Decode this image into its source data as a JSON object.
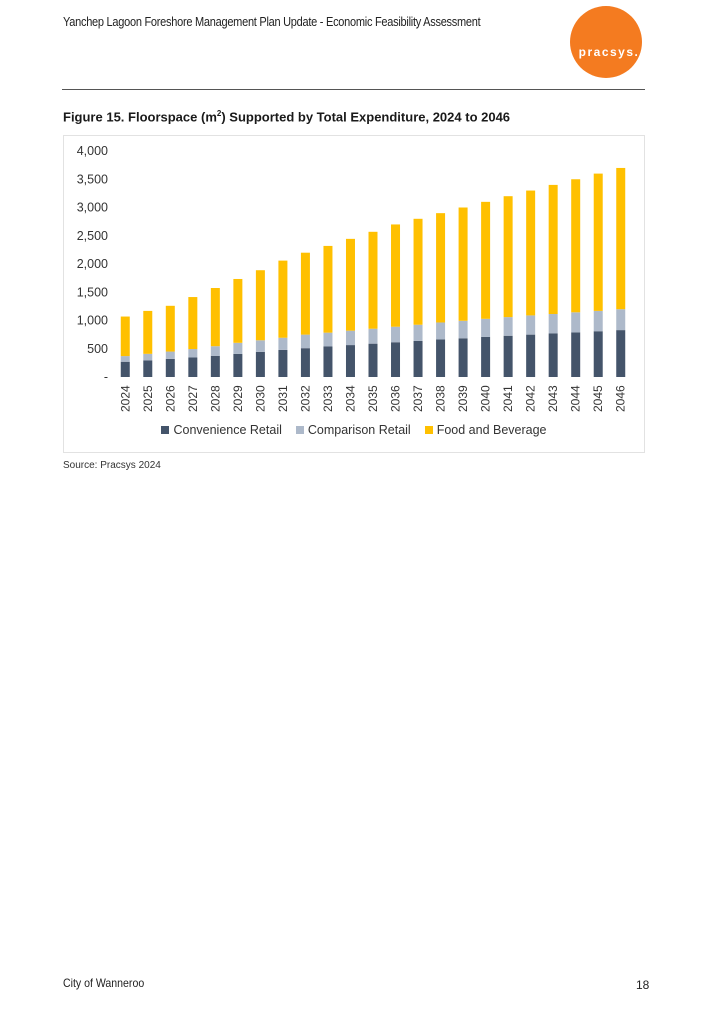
{
  "header": {
    "title": "Yanchep Lagoon Foreshore Management Plan Update - Economic Feasibility Assessment",
    "logo_text": "pracsys."
  },
  "figure": {
    "title_prefix": "Figure 15. Floorspace (m",
    "title_sup": "2",
    "title_suffix": ") Supported by Total Expenditure, 2024 to 2046",
    "source": "Source: Pracsys 2024"
  },
  "chart_data": {
    "type": "bar",
    "stacked": true,
    "categories": [
      "2024",
      "2025",
      "2026",
      "2027",
      "2028",
      "2029",
      "2030",
      "2031",
      "2032",
      "2033",
      "2034",
      "2035",
      "2036",
      "2037",
      "2038",
      "2039",
      "2040",
      "2041",
      "2042",
      "2043",
      "2044",
      "2045",
      "2046"
    ],
    "series": [
      {
        "name": "Convenience Retail",
        "color": "#44546a",
        "values": [
          270,
          295,
          320,
          345,
          375,
          410,
          445,
          480,
          510,
          540,
          565,
          590,
          615,
          640,
          665,
          685,
          710,
          730,
          750,
          770,
          790,
          810,
          830
        ]
      },
      {
        "name": "Comparison Retail",
        "color": "#adb9ca",
        "values": [
          100,
          115,
          130,
          150,
          170,
          195,
          205,
          215,
          240,
          245,
          255,
          265,
          275,
          285,
          300,
          310,
          320,
          330,
          340,
          345,
          355,
          360,
          370
        ]
      },
      {
        "name": "Food and Beverage",
        "color": "#ffc000",
        "values": [
          700,
          760,
          810,
          920,
          1030,
          1130,
          1240,
          1365,
          1450,
          1535,
          1625,
          1715,
          1810,
          1875,
          1935,
          2005,
          2070,
          2140,
          2210,
          2285,
          2355,
          2430,
          2500
        ]
      }
    ],
    "ylim": [
      0,
      4000
    ],
    "yticks": [
      0,
      500,
      1000,
      1500,
      2000,
      2500,
      3000,
      3500,
      4000
    ],
    "ytick_labels": [
      "-",
      "500",
      "1,000",
      "1,500",
      "2,000",
      "2,500",
      "3,000",
      "3,500",
      "4,000"
    ],
    "grid": false,
    "legend_position": "bottom"
  },
  "footer": {
    "left": "City of Wanneroo",
    "page": "18"
  }
}
